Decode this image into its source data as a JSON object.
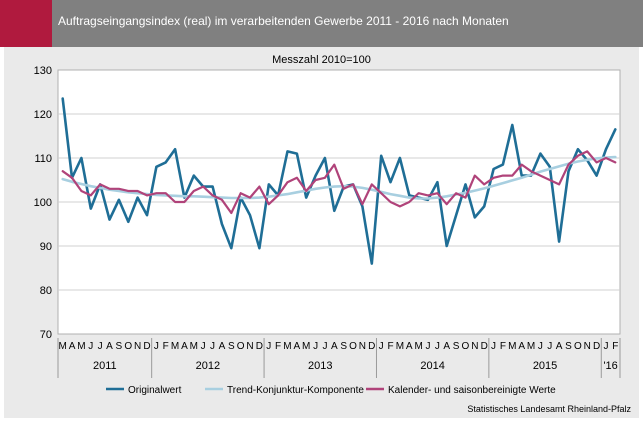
{
  "header": {
    "title": "Auftragseingangsindex (real) im verarbeitenden Gewerbe 2011 - 2016 nach Monaten",
    "accent_color": "#b01a3e",
    "background_color": "#808080"
  },
  "source": "Statistisches Landesamt Rheinland-Pfalz",
  "chart_data": {
    "type": "line",
    "title": "Messzahl 2010=100",
    "ylim": [
      70,
      130
    ],
    "yticks": [
      70,
      80,
      90,
      100,
      110,
      120,
      130
    ],
    "grid": true,
    "legend_position": "bottom",
    "month_labels": [
      "M",
      "A",
      "M",
      "J",
      "J",
      "A",
      "S",
      "O",
      "N",
      "D",
      "J",
      "F",
      "M",
      "A",
      "M",
      "J",
      "J",
      "A",
      "S",
      "O",
      "N",
      "D",
      "J",
      "F",
      "M",
      "A",
      "M",
      "J",
      "J",
      "A",
      "S",
      "O",
      "N",
      "D",
      "J",
      "F",
      "M",
      "A",
      "M",
      "J",
      "J",
      "A",
      "S",
      "O",
      "N",
      "D",
      "J",
      "F",
      "M",
      "A",
      "M",
      "J",
      "J",
      "A",
      "S",
      "O",
      "N",
      "D",
      "J",
      "F"
    ],
    "year_labels": [
      {
        "label": "2011",
        "start": 0,
        "end": 9
      },
      {
        "label": "2012",
        "start": 10,
        "end": 21
      },
      {
        "label": "2013",
        "start": 22,
        "end": 33
      },
      {
        "label": "2014",
        "start": 34,
        "end": 45
      },
      {
        "label": "2015",
        "start": 46,
        "end": 57
      },
      {
        "label": "'16",
        "start": 58,
        "end": 59
      }
    ],
    "series": [
      {
        "name": "Originalwert",
        "color": "#1f6e96",
        "values": [
          123.5,
          105.5,
          110,
          98.5,
          104,
          96,
          100.5,
          95.5,
          101,
          97,
          108,
          109,
          112,
          101,
          106,
          103.5,
          103.5,
          95,
          89.5,
          101,
          97,
          89.5,
          104,
          101.5,
          111.5,
          111,
          101,
          106,
          110,
          98,
          103.5,
          104,
          99,
          86,
          110.5,
          104.5,
          110,
          101.5,
          101,
          100.5,
          104.5,
          90,
          97,
          104,
          96.5,
          99,
          107.5,
          108.5,
          117.5,
          106,
          106,
          111,
          108,
          91,
          107,
          112,
          109.5,
          106,
          112,
          116.5
        ]
      },
      {
        "name": "Trend-Konjunktur-Komponente",
        "color": "#a8cfe0",
        "values": [
          105.2,
          104.6,
          104.1,
          103.6,
          103.2,
          102.8,
          102.5,
          102.2,
          102,
          101.8,
          101.6,
          101.5,
          101.4,
          101.3,
          101.3,
          101.2,
          101.1,
          101,
          100.9,
          100.9,
          100.9,
          101,
          101.2,
          101.5,
          101.8,
          102.2,
          102.6,
          103,
          103.3,
          103.5,
          103.6,
          103.5,
          103.2,
          102.8,
          102.3,
          101.8,
          101.4,
          101,
          100.8,
          100.8,
          101,
          101.3,
          101.7,
          102.1,
          102.6,
          103.1,
          103.7,
          104.3,
          104.9,
          105.5,
          106.2,
          106.9,
          107.5,
          108.1,
          108.7,
          109.2,
          109.6,
          109.9,
          110.1,
          110.2
        ]
      },
      {
        "name": "Kalender- und saisonbereinigte Werte",
        "color": "#b0437a",
        "values": [
          107,
          105.5,
          102.5,
          101.5,
          104,
          103,
          103,
          102.5,
          102.5,
          101.5,
          102,
          102,
          100,
          100,
          102.5,
          103.5,
          101.5,
          100.5,
          97.5,
          102,
          101,
          103.5,
          99.5,
          101.5,
          104.5,
          105.5,
          102.5,
          105,
          105.5,
          108.5,
          103,
          104,
          99.5,
          104,
          102,
          100,
          99,
          100,
          102,
          101.5,
          102,
          99.5,
          102,
          101,
          106,
          104,
          105.5,
          106,
          106,
          108.5,
          107,
          106,
          105,
          104,
          108.5,
          110.5,
          111.5,
          109,
          110,
          109
        ]
      }
    ]
  }
}
